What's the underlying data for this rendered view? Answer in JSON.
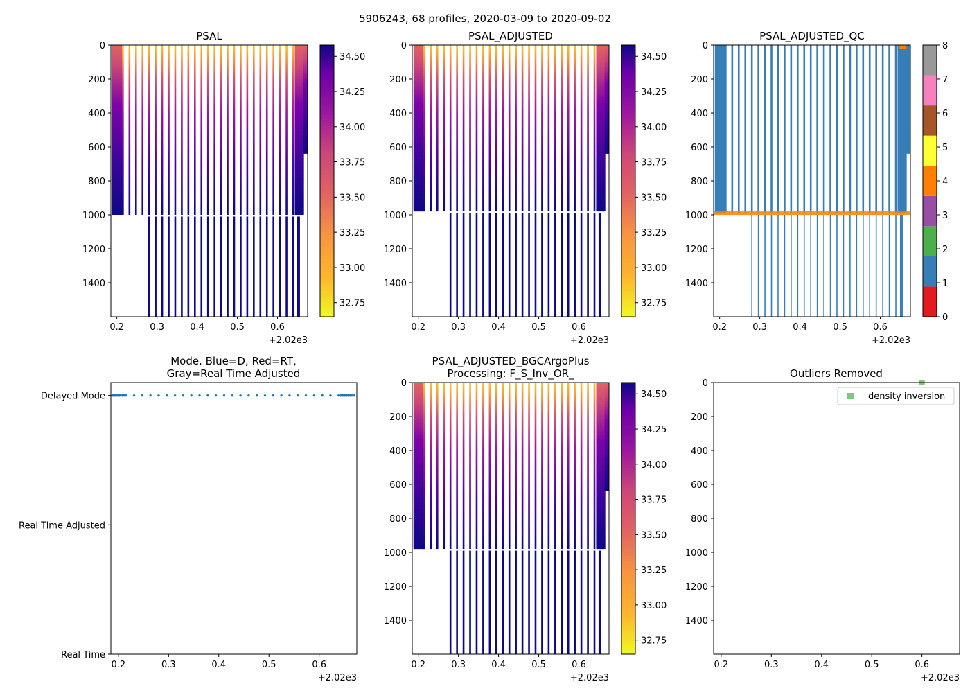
{
  "figure_title": "5906243, 68 profiles, 2020-03-09 to 2020-09-02",
  "colors": {
    "qc": [
      "#e41a1c",
      "#377eb8",
      "#4daf4a",
      "#984ea3",
      "#ff7f00",
      "#ffff33",
      "#a65628",
      "#f781bf",
      "#999999"
    ],
    "mode_blue": "#1f77b4",
    "legend_green": "#7fc97f"
  },
  "chart_data": [
    {
      "type": "heatmap",
      "title": "PSAL",
      "x_range": [
        0.185,
        0.675
      ],
      "x_ticks": [
        "0.2",
        "0.3",
        "0.4",
        "0.5",
        "0.6"
      ],
      "x_offset_label": "+2.02e3",
      "y_range": [
        1600,
        0
      ],
      "y_ticks": [
        "0",
        "200",
        "400",
        "600",
        "800",
        "1000",
        "1200",
        "1400"
      ],
      "colorbar": {
        "range": [
          32.65,
          34.58
        ],
        "ticks": [
          "32.75",
          "33.00",
          "33.25",
          "33.50",
          "33.75",
          "34.00",
          "34.25",
          "34.50"
        ],
        "colormap": "plasma_r"
      },
      "profile_bottom_depth": 1000,
      "deep_profile_depth": 1600
    },
    {
      "type": "heatmap",
      "title": "PSAL_ADJUSTED",
      "x_range": [
        0.185,
        0.675
      ],
      "x_ticks": [
        "0.2",
        "0.3",
        "0.4",
        "0.5",
        "0.6"
      ],
      "x_offset_label": "+2.02e3",
      "y_range": [
        1600,
        0
      ],
      "y_ticks": [
        "0",
        "200",
        "400",
        "600",
        "800",
        "1000",
        "1200",
        "1400"
      ],
      "colorbar": {
        "range": [
          32.65,
          34.58
        ],
        "ticks": [
          "32.75",
          "33.00",
          "33.25",
          "33.50",
          "33.75",
          "34.00",
          "34.25",
          "34.50"
        ],
        "colormap": "plasma_r"
      },
      "profile_bottom_depth": 980,
      "deep_profile_depth": 1600
    },
    {
      "type": "heatmap",
      "title": "PSAL_ADJUSTED_QC",
      "x_range": [
        0.185,
        0.675
      ],
      "x_ticks": [
        "0.2",
        "0.3",
        "0.4",
        "0.5",
        "0.6"
      ],
      "x_offset_label": "+2.02e3",
      "y_range": [
        1600,
        0
      ],
      "y_ticks": [
        "0",
        "200",
        "400",
        "600",
        "800",
        "1000",
        "1200",
        "1400"
      ],
      "colorbar": {
        "range": [
          0,
          8
        ],
        "ticks": [
          "0",
          "1",
          "2",
          "3",
          "4",
          "5",
          "6",
          "7",
          "8"
        ],
        "colormap": "qc"
      },
      "dominant_qc": 1,
      "bottom_qc": 4
    },
    {
      "type": "scatter",
      "title": "Mode. Blue=D, Red=RT,\nGray=Real Time Adjusted",
      "x_range": [
        0.185,
        0.675
      ],
      "x_ticks": [
        "0.2",
        "0.3",
        "0.4",
        "0.5",
        "0.6"
      ],
      "x_offset_label": "+2.02e3",
      "y_categories": [
        "Delayed Mode",
        "Real Time Adjusted",
        "Real Time"
      ],
      "y_range": [
        0,
        2.1
      ],
      "series": [
        {
          "name": "Delayed Mode",
          "y": 2
        }
      ]
    },
    {
      "type": "heatmap",
      "title": "PSAL_ADJUSTED_BGCArgoPlus\nProcessing: F_S_Inv_OR_",
      "x_range": [
        0.185,
        0.675
      ],
      "x_ticks": [
        "0.2",
        "0.3",
        "0.4",
        "0.5",
        "0.6"
      ],
      "x_offset_label": "+2.02e3",
      "y_range": [
        1600,
        0
      ],
      "y_ticks": [
        "0",
        "200",
        "400",
        "600",
        "800",
        "1000",
        "1200",
        "1400"
      ],
      "colorbar": {
        "range": [
          32.65,
          34.58
        ],
        "ticks": [
          "32.75",
          "33.00",
          "33.25",
          "33.50",
          "33.75",
          "34.00",
          "34.25",
          "34.50"
        ],
        "colormap": "plasma_r"
      },
      "profile_bottom_depth": 980,
      "deep_profile_depth": 1600
    },
    {
      "type": "scatter",
      "title": "Outliers Removed",
      "x_range": [
        0.185,
        0.675
      ],
      "x_ticks": [
        "0.2",
        "0.3",
        "0.4",
        "0.5",
        "0.6"
      ],
      "x_offset_label": "+2.02e3",
      "y_range": [
        1600,
        0
      ],
      "y_ticks": [
        "0",
        "200",
        "400",
        "600",
        "800",
        "1000",
        "1200",
        "1400"
      ],
      "legend": {
        "label": "density inversion",
        "placement": "top-right"
      },
      "series": [
        {
          "name": "density inversion",
          "points": [
            {
              "x": 0.6,
              "y": 0
            }
          ]
        }
      ]
    }
  ]
}
